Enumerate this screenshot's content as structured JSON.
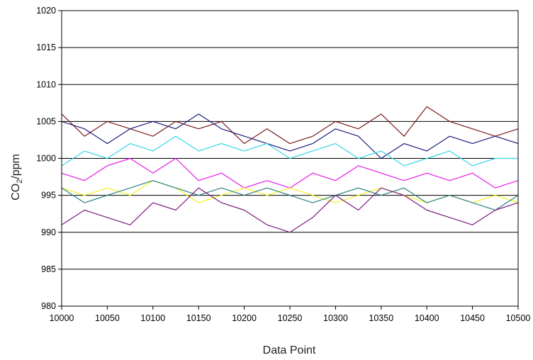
{
  "chart_data": {
    "type": "line",
    "title": "",
    "xlabel": "Data Point",
    "ylabel": "CO2/ppm",
    "ylabel_main": "CO",
    "ylabel_sub": "2",
    "ylabel_rest": "/ppm",
    "xlim": [
      10000,
      10500
    ],
    "ylim": [
      980,
      1020
    ],
    "x_ticks": [
      "10000",
      "10050",
      "10100",
      "10150",
      "10200",
      "10250",
      "10300",
      "10350",
      "10400",
      "10450",
      "10500"
    ],
    "y_ticks": [
      "980",
      "985",
      "990",
      "995",
      "1000",
      "1005",
      "1010",
      "1015",
      "1020"
    ],
    "grid": "horizontal",
    "legend": "none",
    "series": [
      {
        "color": "#7b1a1a",
        "points": [
          [
            10000,
            1006
          ],
          [
            10025,
            1003
          ],
          [
            10050,
            1005
          ],
          [
            10075,
            1004
          ],
          [
            10100,
            1003
          ],
          [
            10125,
            1005
          ],
          [
            10150,
            1004
          ],
          [
            10175,
            1005
          ],
          [
            10200,
            1002
          ],
          [
            10225,
            1004
          ],
          [
            10250,
            1002
          ],
          [
            10275,
            1003
          ],
          [
            10300,
            1005
          ],
          [
            10325,
            1004
          ],
          [
            10350,
            1006
          ],
          [
            10375,
            1003
          ],
          [
            10400,
            1007
          ],
          [
            10425,
            1005
          ],
          [
            10450,
            1004
          ],
          [
            10475,
            1003
          ],
          [
            10500,
            1004
          ]
        ]
      },
      {
        "color": "#1a1a80",
        "points": [
          [
            10000,
            1005
          ],
          [
            10025,
            1004
          ],
          [
            10050,
            1002
          ],
          [
            10075,
            1004
          ],
          [
            10100,
            1005
          ],
          [
            10125,
            1004
          ],
          [
            10150,
            1006
          ],
          [
            10175,
            1004
          ],
          [
            10200,
            1003
          ],
          [
            10225,
            1002
          ],
          [
            10250,
            1001
          ],
          [
            10275,
            1002
          ],
          [
            10300,
            1004
          ],
          [
            10325,
            1003
          ],
          [
            10350,
            1000
          ],
          [
            10375,
            1002
          ],
          [
            10400,
            1001
          ],
          [
            10425,
            1003
          ],
          [
            10450,
            1002
          ],
          [
            10475,
            1003
          ],
          [
            10500,
            1002
          ]
        ]
      },
      {
        "color": "#33d6e6",
        "points": [
          [
            10000,
            999
          ],
          [
            10025,
            1001
          ],
          [
            10050,
            1000
          ],
          [
            10075,
            1002
          ],
          [
            10100,
            1001
          ],
          [
            10125,
            1003
          ],
          [
            10150,
            1001
          ],
          [
            10175,
            1002
          ],
          [
            10200,
            1001
          ],
          [
            10225,
            1002
          ],
          [
            10250,
            1000
          ],
          [
            10275,
            1001
          ],
          [
            10300,
            1002
          ],
          [
            10325,
            1000
          ],
          [
            10350,
            1001
          ],
          [
            10375,
            999
          ],
          [
            10400,
            1000
          ],
          [
            10425,
            1001
          ],
          [
            10450,
            999
          ],
          [
            10475,
            1000
          ],
          [
            10500,
            1000
          ]
        ]
      },
      {
        "color": "#e61ae6",
        "points": [
          [
            10000,
            998
          ],
          [
            10025,
            997
          ],
          [
            10050,
            999
          ],
          [
            10075,
            1000
          ],
          [
            10100,
            998
          ],
          [
            10125,
            1000
          ],
          [
            10150,
            997
          ],
          [
            10175,
            998
          ],
          [
            10200,
            996
          ],
          [
            10225,
            997
          ],
          [
            10250,
            996
          ],
          [
            10275,
            998
          ],
          [
            10300,
            997
          ],
          [
            10325,
            999
          ],
          [
            10350,
            998
          ],
          [
            10375,
            997
          ],
          [
            10400,
            998
          ],
          [
            10425,
            997
          ],
          [
            10450,
            998
          ],
          [
            10475,
            996
          ],
          [
            10500,
            997
          ]
        ]
      },
      {
        "color": "#f2f21a",
        "points": [
          [
            10000,
            996
          ],
          [
            10025,
            995
          ],
          [
            10050,
            996
          ],
          [
            10075,
            995
          ],
          [
            10100,
            997
          ],
          [
            10125,
            996
          ],
          [
            10150,
            994
          ],
          [
            10175,
            995
          ],
          [
            10200,
            996
          ],
          [
            10225,
            995
          ],
          [
            10250,
            996
          ],
          [
            10275,
            995
          ],
          [
            10300,
            994
          ],
          [
            10325,
            995
          ],
          [
            10350,
            996
          ],
          [
            10375,
            995
          ],
          [
            10400,
            994
          ],
          [
            10425,
            995
          ],
          [
            10450,
            994
          ],
          [
            10475,
            995
          ],
          [
            10500,
            994
          ]
        ]
      },
      {
        "color": "#2a8080",
        "points": [
          [
            10000,
            996
          ],
          [
            10025,
            994
          ],
          [
            10050,
            995
          ],
          [
            10075,
            996
          ],
          [
            10100,
            997
          ],
          [
            10125,
            996
          ],
          [
            10150,
            995
          ],
          [
            10175,
            996
          ],
          [
            10200,
            995
          ],
          [
            10225,
            996
          ],
          [
            10250,
            995
          ],
          [
            10275,
            994
          ],
          [
            10300,
            995
          ],
          [
            10325,
            996
          ],
          [
            10350,
            995
          ],
          [
            10375,
            996
          ],
          [
            10400,
            994
          ],
          [
            10425,
            995
          ],
          [
            10450,
            994
          ],
          [
            10475,
            993
          ],
          [
            10500,
            995
          ]
        ]
      },
      {
        "color": "#7a1a80",
        "points": [
          [
            10000,
            991
          ],
          [
            10025,
            993
          ],
          [
            10050,
            992
          ],
          [
            10075,
            991
          ],
          [
            10100,
            994
          ],
          [
            10125,
            993
          ],
          [
            10150,
            996
          ],
          [
            10175,
            994
          ],
          [
            10200,
            993
          ],
          [
            10225,
            991
          ],
          [
            10250,
            990
          ],
          [
            10275,
            992
          ],
          [
            10300,
            995
          ],
          [
            10325,
            993
          ],
          [
            10350,
            996
          ],
          [
            10375,
            995
          ],
          [
            10400,
            993
          ],
          [
            10425,
            992
          ],
          [
            10450,
            991
          ],
          [
            10475,
            993
          ],
          [
            10500,
            994
          ]
        ]
      }
    ]
  }
}
